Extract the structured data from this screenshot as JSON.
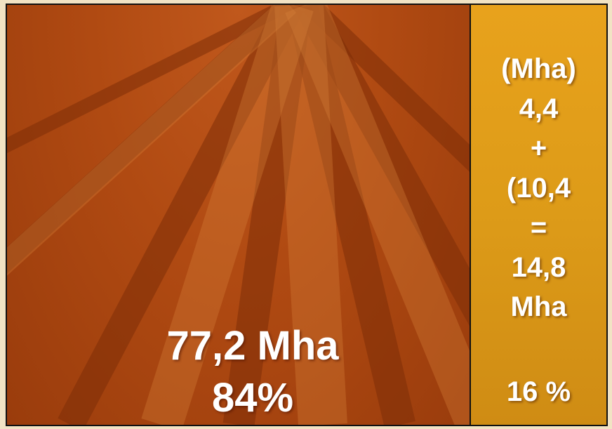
{
  "left_panel": {
    "lines": [
      "77,2 Mha",
      "84%"
    ]
  },
  "right_panel": {
    "lines": [
      "(Mha)",
      "4,4",
      "+",
      "(10,4",
      "=",
      "14,8",
      "Mha"
    ],
    "share": "16 %"
  }
}
